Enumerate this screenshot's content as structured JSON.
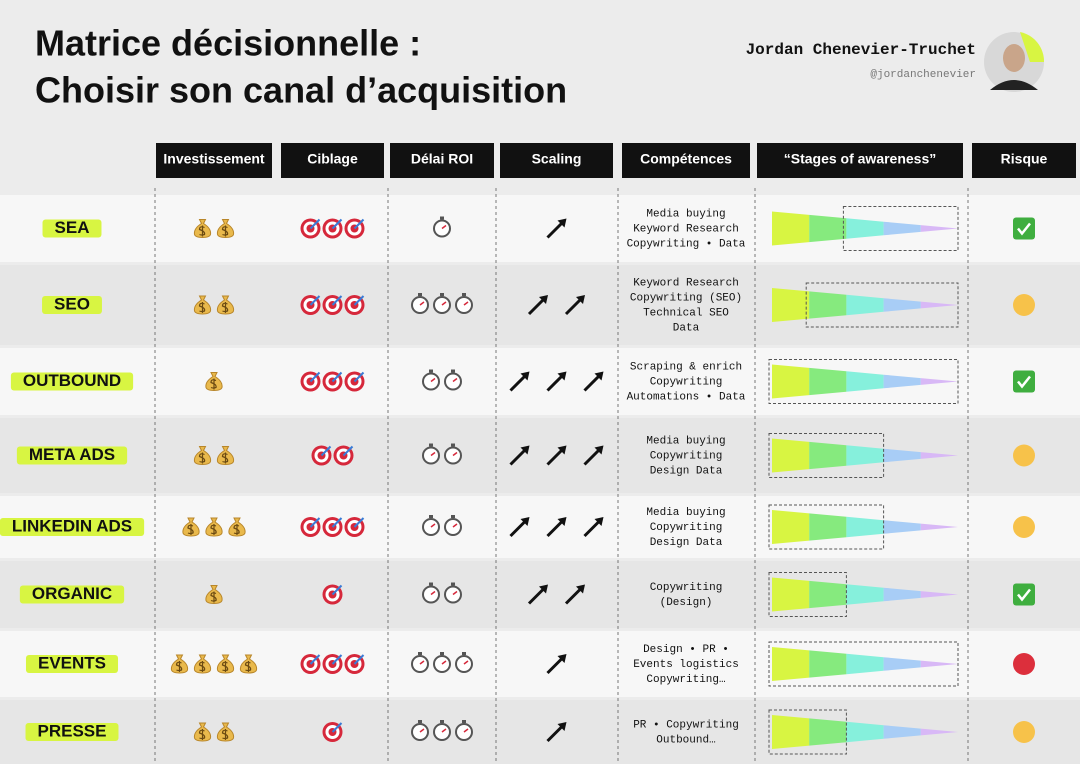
{
  "header": {
    "title_lines": [
      "Matrice décisionnelle :",
      "Choisir son canal d’acquisition"
    ],
    "author": "Jordan Chenevier-Truchet",
    "handle": "@jordanchenevier"
  },
  "columns": [
    "Investissement",
    "Ciblage",
    "Délai ROI",
    "Scaling",
    "Compétences",
    "“Stages of awareness”",
    "Risque"
  ],
  "awareness_colors": [
    "#d8f542",
    "#86ea7e",
    "#86f0dc",
    "#a8cdf6",
    "#d8b8f6"
  ],
  "rows": [
    {
      "label": "SEA",
      "investment": 2,
      "targeting": 3,
      "roi_delay": 1,
      "scaling": 1,
      "skills": [
        "Media buying",
        "Keyword Research",
        "Copywriting • Data"
      ],
      "awareness": [
        2,
        5
      ],
      "risk": "#3fae3f"
    },
    {
      "label": "SEO",
      "investment": 2,
      "targeting": 3,
      "roi_delay": 3,
      "scaling": 2,
      "skills": [
        "Keyword Research",
        "Copywriting (SEO)",
        "Technical SEO",
        "Data"
      ],
      "awareness": [
        1,
        5
      ],
      "risk": "#f7c24a"
    },
    {
      "label": "OUTBOUND",
      "investment": 1,
      "targeting": 3,
      "roi_delay": 2,
      "scaling": 3,
      "skills": [
        "Scraping & enrich",
        "Copywriting",
        "Automations • Data"
      ],
      "awareness": [
        0,
        5
      ],
      "risk": "#3fae3f"
    },
    {
      "label": "META ADS",
      "investment": 2,
      "targeting": 2,
      "roi_delay": 2,
      "scaling": 3,
      "skills": [
        "Media buying",
        "Copywriting",
        "Design Data"
      ],
      "awareness": [
        0,
        3
      ],
      "risk": "#f7c24a"
    },
    {
      "label": "LINKEDIN ADS",
      "investment": 3,
      "targeting": 3,
      "roi_delay": 2,
      "scaling": 3,
      "skills": [
        "Media buying",
        "Copywriting",
        "Design Data"
      ],
      "awareness": [
        0,
        3
      ],
      "risk": "#f7c24a"
    },
    {
      "label": "ORGANIC",
      "investment": 1,
      "targeting": 1,
      "roi_delay": 2,
      "scaling": 2,
      "skills": [
        "Copywriting",
        "(Design)"
      ],
      "awareness": [
        0,
        2
      ],
      "risk": "#3fae3f"
    },
    {
      "label": "EVENTS",
      "investment": 4,
      "targeting": 3,
      "roi_delay": 3,
      "scaling": 1,
      "skills": [
        "Design • PR •",
        "Events logistics",
        "Copywriting…"
      ],
      "awareness": [
        0,
        5
      ],
      "risk": "#dc2f3c"
    },
    {
      "label": "PRESSE",
      "investment": 2,
      "targeting": 1,
      "roi_delay": 3,
      "scaling": 1,
      "skills": [
        "PR • Copywriting",
        "Outbound…"
      ],
      "awareness": [
        0,
        2
      ],
      "risk": "#f7c24a"
    }
  ]
}
